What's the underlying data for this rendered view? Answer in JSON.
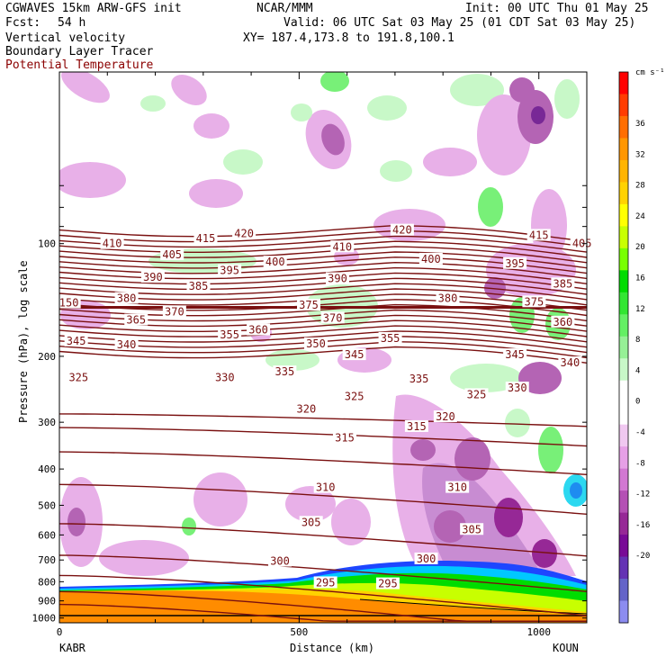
{
  "header": {
    "model": "CGWAVES 15km ARW-GFS init",
    "fcst_label": "Fcst:",
    "fcst_value": "54 h",
    "org": "NCAR/MMM",
    "init": "Init: 00 UTC Thu 01 May 25",
    "valid": "Valid: 06 UTC Sat 03 May 25 (01 CDT Sat 03 May 25)",
    "xy": "XY= 187.4,173.8 to 191.8,100.1",
    "field1": "Vertical velocity",
    "field2": "Boundary Layer Tracer",
    "field3": "Potential Temperature"
  },
  "colors": {
    "theta_contour": "#7a1010",
    "field3_text": "#8b0000",
    "terrain": "#ff8c00"
  },
  "chart_data": {
    "type": "contour",
    "title": "",
    "xlabel": "Distance (km)",
    "ylabel": "Pressure (hPa), log scale",
    "x_ticks": [
      0,
      500,
      1000
    ],
    "y_ticks": [
      100,
      200,
      300,
      400,
      500,
      600,
      700,
      800,
      900,
      1000
    ],
    "endpoint_left": "KABR",
    "endpoint_right": "KOUN",
    "colorbar": {
      "unit": "cm s⁻¹",
      "labels": [
        "36",
        "32",
        "28",
        "24",
        "20",
        "16",
        "12",
        "8",
        "4",
        "0",
        "-4",
        "-8",
        "-12",
        "-16",
        "-20"
      ],
      "colors": [
        "#ff0000",
        "#ff3c00",
        "#ff6e00",
        "#ff9600",
        "#ffb400",
        "#ffd200",
        "#ffff00",
        "#c8ff00",
        "#78ff00",
        "#00dc00",
        "#32e632",
        "#64f064",
        "#96f096",
        "#c8f8c8",
        "#ffffff",
        "#ffffff",
        "#f0c8f0",
        "#e6a0e6",
        "#d278d2",
        "#b450b4",
        "#962896",
        "#780a96",
        "#6432b4",
        "#6464c8",
        "#8c8cf0"
      ]
    },
    "theta_labels": [
      {
        "x": 110,
        "p": 100,
        "t": "410"
      },
      {
        "x": 305,
        "p": 97,
        "t": "415"
      },
      {
        "x": 385,
        "p": 94,
        "t": "420"
      },
      {
        "x": 235,
        "p": 107,
        "t": "405"
      },
      {
        "x": 590,
        "p": 102,
        "t": "410"
      },
      {
        "x": 715,
        "p": 92,
        "t": "420"
      },
      {
        "x": 1000,
        "p": 95,
        "t": "415"
      },
      {
        "x": 1090,
        "p": 100,
        "t": "405"
      },
      {
        "x": 775,
        "p": 110,
        "t": "400"
      },
      {
        "x": 450,
        "p": 112,
        "t": "400"
      },
      {
        "x": 355,
        "p": 118,
        "t": "395"
      },
      {
        "x": 950,
        "p": 113,
        "t": "395"
      },
      {
        "x": 195,
        "p": 123,
        "t": "390"
      },
      {
        "x": 580,
        "p": 124,
        "t": "390"
      },
      {
        "x": 140,
        "p": 140,
        "t": "380"
      },
      {
        "x": 290,
        "p": 130,
        "t": "385"
      },
      {
        "x": 1050,
        "p": 128,
        "t": "385"
      },
      {
        "x": 810,
        "p": 140,
        "t": "380"
      },
      {
        "x": 990,
        "p": 143,
        "t": "375"
      },
      {
        "x": 520,
        "p": 146,
        "t": "375"
      },
      {
        "x": 20,
        "p": 144,
        "t": "150"
      },
      {
        "x": 240,
        "p": 152,
        "t": "370"
      },
      {
        "x": 160,
        "p": 160,
        "t": "365"
      },
      {
        "x": 570,
        "p": 158,
        "t": "370"
      },
      {
        "x": 1050,
        "p": 162,
        "t": "360"
      },
      {
        "x": 415,
        "p": 170,
        "t": "360"
      },
      {
        "x": 35,
        "p": 182,
        "t": "345"
      },
      {
        "x": 140,
        "p": 186,
        "t": "340"
      },
      {
        "x": 355,
        "p": 175,
        "t": "355"
      },
      {
        "x": 535,
        "p": 185,
        "t": "350"
      },
      {
        "x": 690,
        "p": 179,
        "t": "355"
      },
      {
        "x": 615,
        "p": 198,
        "t": "345"
      },
      {
        "x": 950,
        "p": 198,
        "t": "345"
      },
      {
        "x": 1065,
        "p": 208,
        "t": "340"
      },
      {
        "x": 40,
        "p": 228,
        "t": "325"
      },
      {
        "x": 470,
        "p": 220,
        "t": "335"
      },
      {
        "x": 345,
        "p": 228,
        "t": "330"
      },
      {
        "x": 750,
        "p": 230,
        "t": "335"
      },
      {
        "x": 955,
        "p": 243,
        "t": "330"
      },
      {
        "x": 870,
        "p": 253,
        "t": "325"
      },
      {
        "x": 615,
        "p": 256,
        "t": "325"
      },
      {
        "x": 515,
        "p": 277,
        "t": "320"
      },
      {
        "x": 805,
        "p": 290,
        "t": "320"
      },
      {
        "x": 595,
        "p": 330,
        "t": "315"
      },
      {
        "x": 745,
        "p": 308,
        "t": "315"
      },
      {
        "x": 555,
        "p": 448,
        "t": "310"
      },
      {
        "x": 830,
        "p": 448,
        "t": "310"
      },
      {
        "x": 525,
        "p": 555,
        "t": "305"
      },
      {
        "x": 860,
        "p": 580,
        "t": "305"
      },
      {
        "x": 460,
        "p": 705,
        "t": "300"
      },
      {
        "x": 765,
        "p": 695,
        "t": "300"
      },
      {
        "x": 555,
        "p": 805,
        "t": "295"
      },
      {
        "x": 685,
        "p": 810,
        "t": "295"
      }
    ]
  }
}
